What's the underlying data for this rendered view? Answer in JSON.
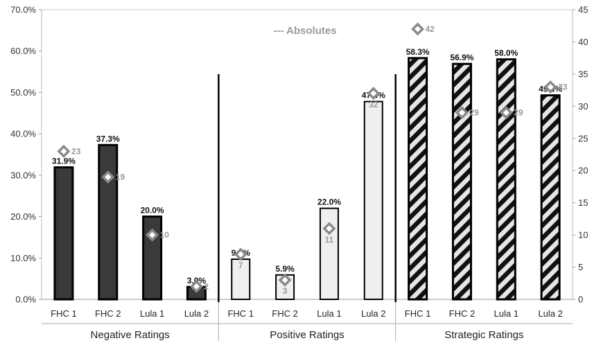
{
  "chart_data": {
    "type": "bar",
    "annotation": "--- Absolutes",
    "y_left": {
      "ylim": [
        0,
        70
      ],
      "ticks": [
        "0.0%",
        "10.0%",
        "20.0%",
        "30.0%",
        "40.0%",
        "50.0%",
        "60.0%",
        "70.0%"
      ]
    },
    "y_right": {
      "ylim": [
        0,
        45
      ],
      "ticks": [
        "0",
        "5",
        "10",
        "15",
        "20",
        "25",
        "30",
        "35",
        "40",
        "45"
      ]
    },
    "groups": [
      {
        "name": "Negative Ratings",
        "style": "solid",
        "categories": [
          "FHC 1",
          "FHC 2",
          "Lula 1",
          "Lula 2"
        ],
        "values": [
          31.9,
          37.3,
          20.0,
          3.0
        ],
        "labels": [
          "31.9%",
          "37.3%",
          "20.0%",
          "3.0%"
        ],
        "absolutes": [
          23,
          19,
          10,
          2
        ]
      },
      {
        "name": "Positive Ratings",
        "style": "light",
        "categories": [
          "FHC 1",
          "FHC 2",
          "Lula 1",
          "Lula 2"
        ],
        "values": [
          9.7,
          5.9,
          22.0,
          47.8
        ],
        "labels": [
          "9.7%",
          "5.9%",
          "22.0%",
          "47.8%"
        ],
        "absolutes": [
          7,
          3,
          11,
          32
        ]
      },
      {
        "name": "Strategic Ratings",
        "style": "hatched",
        "categories": [
          "FHC 1",
          "FHC 2",
          "Lula 1",
          "Lula 2"
        ],
        "values": [
          58.3,
          56.9,
          58.0,
          49.3
        ],
        "labels": [
          "58.3%",
          "56.9%",
          "58.0%",
          "49.3%"
        ],
        "absolutes": [
          42,
          29,
          29,
          33
        ]
      }
    ],
    "colors": {
      "solid": "#3a3a3a",
      "light": "#efefef",
      "hatch": "#111111",
      "marker": "#8a8a8a",
      "abs_text": "#999999",
      "grid": "#cccccc"
    }
  }
}
